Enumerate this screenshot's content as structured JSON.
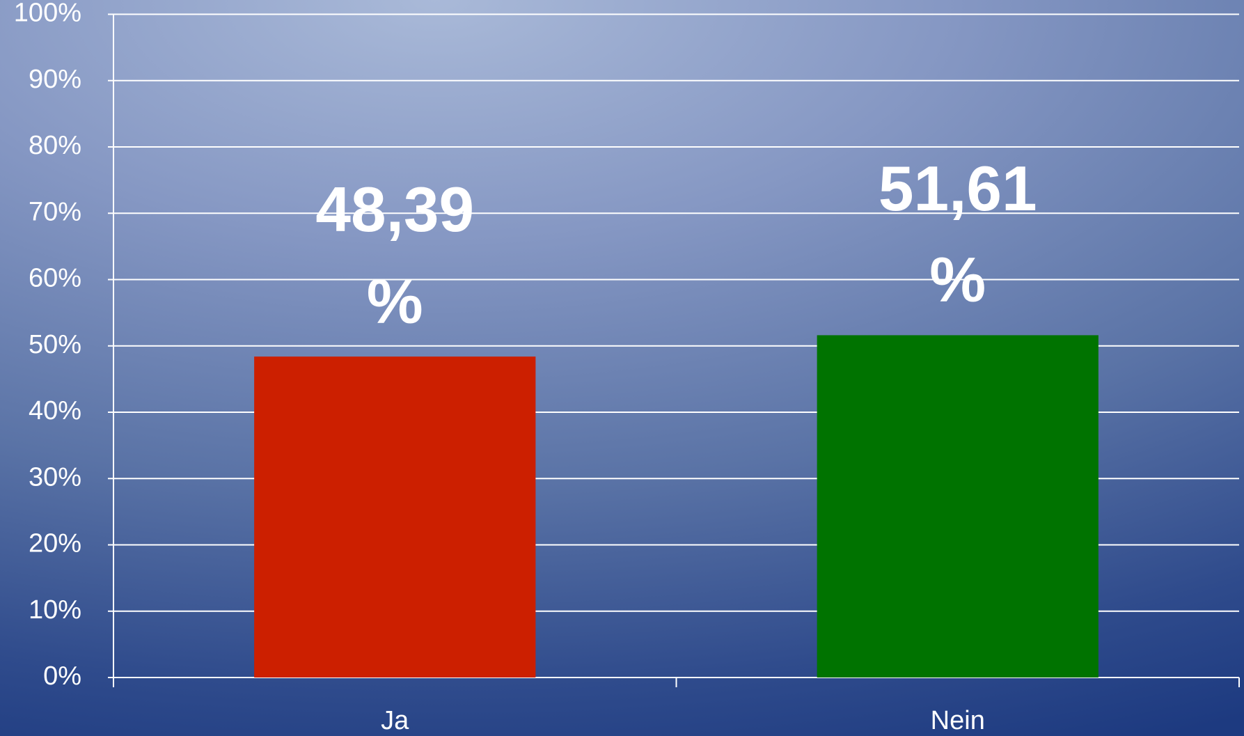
{
  "chart_data": {
    "type": "bar",
    "categories": [
      "Ja",
      "Nein"
    ],
    "values": [
      48.39,
      51.61
    ],
    "value_labels": [
      "48,39 %",
      "51,61 %"
    ],
    "colors": [
      "#cc1f00",
      "#007300"
    ],
    "ylim": [
      0,
      100
    ],
    "yticks": [
      {
        "value": 0,
        "label": "0%"
      },
      {
        "value": 10,
        "label": "10%"
      },
      {
        "value": 20,
        "label": "20%"
      },
      {
        "value": 30,
        "label": "30%"
      },
      {
        "value": 40,
        "label": "40%"
      },
      {
        "value": 50,
        "label": "50%"
      },
      {
        "value": 60,
        "label": "60%"
      },
      {
        "value": 70,
        "label": "70%"
      },
      {
        "value": 80,
        "label": "80%"
      },
      {
        "value": 90,
        "label": "90%"
      },
      {
        "value": 100,
        "label": "100%"
      }
    ],
    "grid": true
  }
}
